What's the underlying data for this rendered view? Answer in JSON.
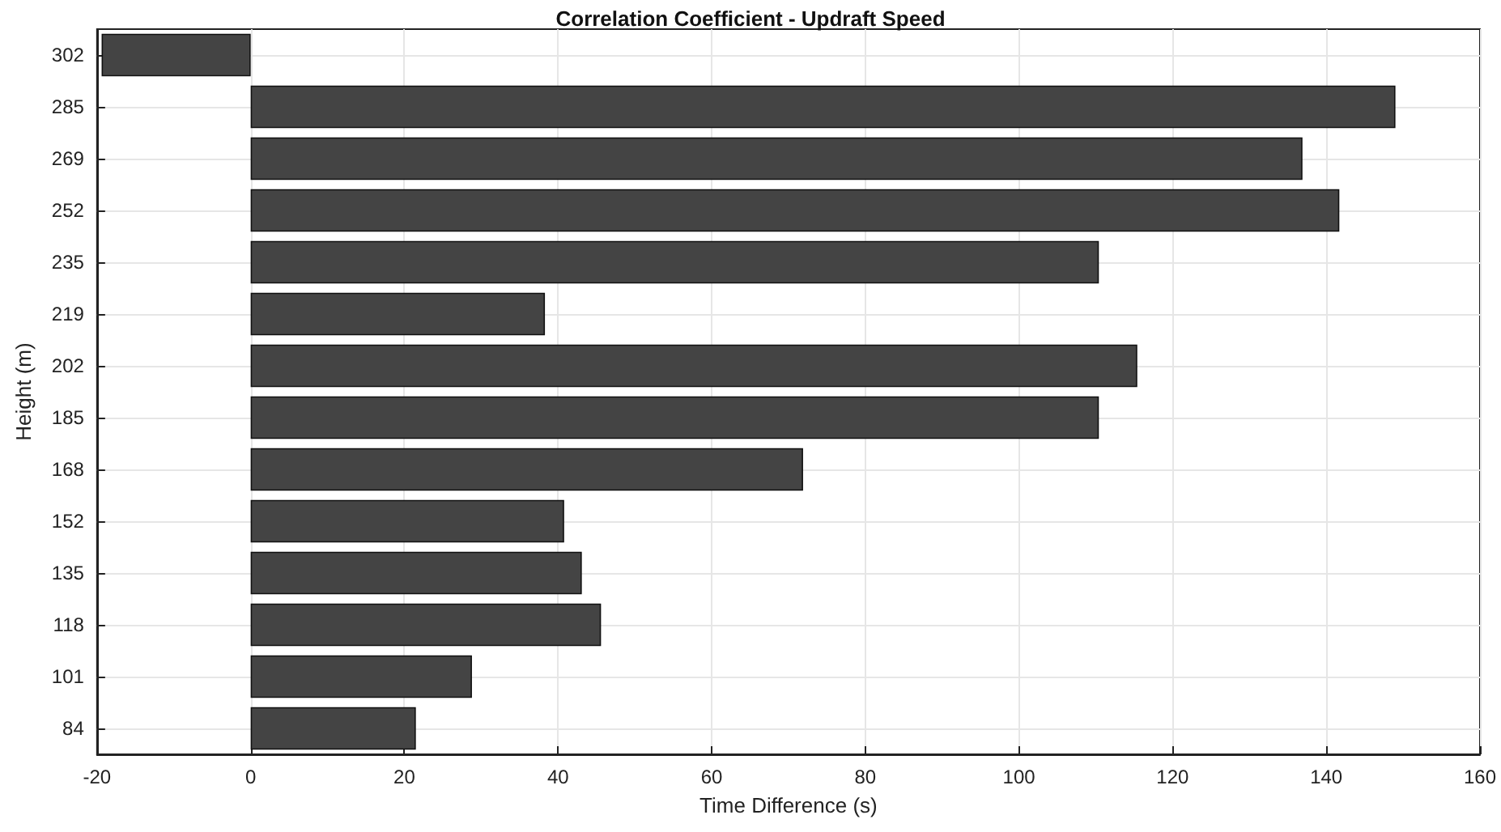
{
  "chart_data": {
    "type": "bar",
    "orientation": "horizontal",
    "title": "Correlation Coefficient - Updraft Speed",
    "xlabel": "Time Difference (s)",
    "ylabel": "Height (m)",
    "categories": [
      "302",
      "285",
      "269",
      "252",
      "235",
      "219",
      "202",
      "185",
      "168",
      "152",
      "135",
      "118",
      "101",
      "84"
    ],
    "values": [
      -19.4,
      149,
      136.9,
      141.7,
      110.4,
      38.3,
      115.4,
      110.4,
      71.9,
      40.8,
      43.1,
      45.6,
      28.8,
      21.5
    ],
    "color": "#444444",
    "xlim": [
      -20,
      160
    ],
    "xticks": [
      -20,
      0,
      20,
      40,
      60,
      80,
      100,
      120,
      140,
      160
    ],
    "grid": true
  }
}
